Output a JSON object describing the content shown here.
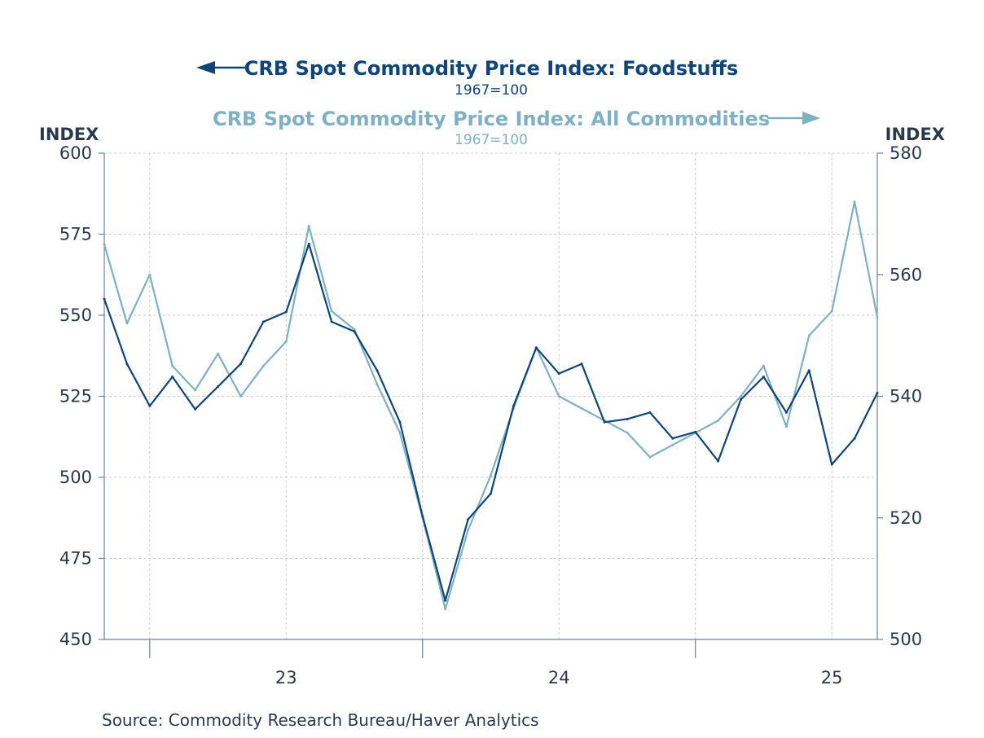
{
  "colors": {
    "foodstuffs": "#0f4577",
    "all_commodities": "#7fb0c4",
    "text": "#2b3a4a",
    "axis": "#6e8295",
    "grid": "#c8cdd3"
  },
  "chart_data": {
    "type": "line",
    "title_series_1": "CRB Spot Commodity Price Index: Foodstuffs",
    "subtitle_series_1": "1967=100",
    "title_series_2": "CRB Spot Commodity Price Index: All Commodities",
    "subtitle_series_2": "1967=100",
    "left_axis_title": "INDEX",
    "right_axis_title": "INDEX",
    "source": "Source:  Commodity Research Bureau/Haver Analytics",
    "x_tick_labels": [
      "23",
      "24",
      "25"
    ],
    "xlim": [
      "2022-05",
      "2025-03"
    ],
    "left_ylim": [
      450,
      600
    ],
    "left_yticks": [
      450,
      475,
      500,
      525,
      550,
      575,
      600
    ],
    "right_ylim": [
      500,
      580
    ],
    "right_yticks": [
      500,
      520,
      540,
      560,
      580
    ],
    "grid": true,
    "series": [
      {
        "name": "CRB Spot Commodity Price Index: Foodstuffs",
        "axis": "left",
        "x": [
          "2022-05",
          "2022-06",
          "2022-07",
          "2022-08",
          "2022-09",
          "2022-10",
          "2022-11",
          "2022-12",
          "2023-01",
          "2023-02",
          "2023-03",
          "2023-04",
          "2023-05",
          "2023-06",
          "2023-07",
          "2023-08",
          "2023-09",
          "2023-10",
          "2023-11",
          "2023-12",
          "2024-01",
          "2024-02",
          "2024-03",
          "2024-04",
          "2024-05",
          "2024-06",
          "2024-07",
          "2024-08",
          "2024-09",
          "2024-10",
          "2024-11",
          "2024-12",
          "2025-01",
          "2025-02",
          "2025-03"
        ],
        "values": [
          555,
          535,
          522,
          531,
          521,
          528,
          535,
          548,
          551,
          572,
          548,
          545,
          533,
          517,
          488,
          462,
          487,
          495,
          522,
          540,
          532,
          535,
          517,
          518,
          520,
          512,
          514,
          505,
          524,
          531,
          520,
          533,
          504,
          512,
          526
        ]
      },
      {
        "name": "CRB Spot Commodity Price Index: All Commodities",
        "axis": "right",
        "x": [
          "2022-05",
          "2022-06",
          "2022-07",
          "2022-08",
          "2022-09",
          "2022-10",
          "2022-11",
          "2022-12",
          "2023-01",
          "2023-02",
          "2023-03",
          "2023-04",
          "2023-05",
          "2023-06",
          "2023-07",
          "2023-08",
          "2023-09",
          "2023-10",
          "2023-11",
          "2023-12",
          "2024-01",
          "2024-02",
          "2024-03",
          "2024-04",
          "2024-05",
          "2024-06",
          "2024-07",
          "2024-08",
          "2024-09",
          "2024-10",
          "2024-11",
          "2024-12",
          "2025-01",
          "2025-02",
          "2025-03"
        ],
        "values": [
          565,
          552,
          560,
          545,
          541,
          547,
          540,
          545,
          549,
          568,
          554,
          551,
          542,
          534,
          520,
          505,
          518,
          527,
          538,
          548,
          540,
          538,
          536,
          534,
          530,
          532,
          534,
          536,
          540,
          545,
          535,
          550,
          554,
          572,
          553
        ]
      }
    ]
  }
}
